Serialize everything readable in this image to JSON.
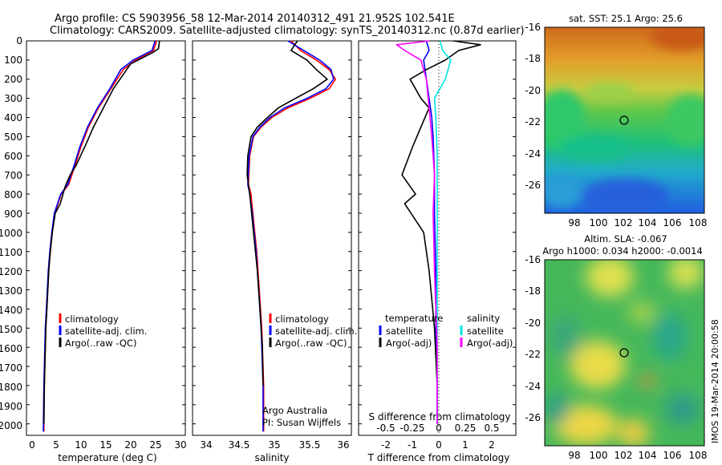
{
  "header": {
    "line1": "Argo profile: CS 5903956_58 12-Mar-2014 20140312_491 21.952S 102.541E",
    "line2": "Climatology: CARS2009. Satellite-adjusted climatology: synTS_20140312.nc (0.87d earlier)"
  },
  "colors": {
    "climatology": "#ff0000",
    "satellite": "#0000ff",
    "argo": "#000000",
    "sal_satellite": "#00e5e5",
    "sal_argo": "#ff00ff"
  },
  "depth_ticks": [
    "0",
    "100",
    "200",
    "300",
    "400",
    "500",
    "600",
    "700",
    "800",
    "900",
    "1000",
    "1100",
    "1200",
    "1300",
    "1400",
    "1500",
    "1600",
    "1700",
    "1800",
    "1900",
    "2000"
  ],
  "temp_legend": {
    "clim": "climatology",
    "sat": "satellite-adj. clim.",
    "argo": "Argo(..raw -QC)"
  },
  "sal_legend": {
    "clim": "climatology",
    "sat": "satellite-adj. clim.",
    "argo": "Argo(..raw -QC)"
  },
  "diff_legend": {
    "temp_title": "temperature",
    "temp_sat": "satellite",
    "temp_argo": "Argo(-adj)",
    "sal_title": "salinity",
    "sal_sat": "satellite",
    "sal_argo": "Argo(-adj)"
  },
  "credit": {
    "line1": "Argo Australia",
    "line2": "PI: Susan Wijffels"
  },
  "diff_axis_top_label": "S difference from climatology",
  "map_sst": {
    "title": "sat. SST: 25.1  Argo: 25.6"
  },
  "map_sla": {
    "title1": "Altim. SLA: -0.067",
    "title2": "Argo h1000: 0.034  h2000: -0.0014"
  },
  "stamp": "IMOS 19-Mar-2014 20:00:58",
  "chart_data": [
    {
      "type": "line",
      "id": "temperature",
      "xlabel": "temperature (deg C)",
      "ylabel": "depth",
      "xlim": [
        -1,
        31
      ],
      "ylim": [
        2060,
        0
      ],
      "xticks": [
        "0",
        "5",
        "10",
        "15",
        "20",
        "25",
        "30"
      ],
      "x_tick_values": [
        0,
        5,
        10,
        15,
        20,
        25,
        30
      ],
      "series": [
        {
          "name": "climatology",
          "color": "red",
          "x": [
            25.2,
            24.6,
            21.0,
            18.5,
            16.0,
            13.5,
            11.5,
            10.0,
            8.8,
            7.5,
            6.0,
            4.7,
            4.2,
            3.8,
            3.5,
            3.3,
            3.1,
            2.9,
            2.8,
            2.7,
            2.6,
            2.5
          ],
          "y": [
            0,
            50,
            100,
            150,
            250,
            350,
            450,
            550,
            650,
            750,
            800,
            900,
            1000,
            1100,
            1200,
            1300,
            1400,
            1500,
            1600,
            1700,
            1800,
            2040
          ]
        },
        {
          "name": "satellite-adj. clim.",
          "color": "blue",
          "x": [
            24.9,
            24.3,
            20.5,
            18.0,
            15.8,
            13.3,
            11.3,
            9.8,
            8.6,
            7.3,
            5.9,
            4.6,
            4.1,
            3.7,
            3.4,
            3.2,
            3.0,
            2.8,
            2.7,
            2.6,
            2.5,
            2.4
          ],
          "y": [
            0,
            50,
            100,
            150,
            250,
            350,
            450,
            550,
            650,
            750,
            800,
            900,
            1000,
            1100,
            1200,
            1300,
            1400,
            1500,
            1600,
            1700,
            1800,
            2040
          ]
        },
        {
          "name": "Argo(..raw -QC)",
          "color": "black",
          "x": [
            25.8,
            25.6,
            24.5,
            20.0,
            16.5,
            14.5,
            12.5,
            10.8,
            9.0,
            7.8,
            6.8,
            5.8,
            4.8,
            4.2,
            3.8,
            3.5,
            3.3,
            3.1,
            2.9,
            2.8,
            2.7,
            2.6,
            2.5
          ],
          "y": [
            0,
            40,
            60,
            120,
            250,
            350,
            450,
            550,
            650,
            700,
            760,
            850,
            900,
            1000,
            1100,
            1200,
            1300,
            1400,
            1500,
            1600,
            1700,
            1800,
            2000
          ]
        }
      ]
    },
    {
      "type": "line",
      "id": "salinity",
      "xlabel": "salinity",
      "ylabel": "depth",
      "xlim": [
        33.6,
        36.1
      ],
      "ylim": [
        2060,
        0
      ],
      "xticks": [
        "34",
        "34.5",
        "35",
        "35.5",
        "36"
      ],
      "x_tick_values": [
        34,
        34.5,
        35,
        35.5,
        36
      ],
      "series": [
        {
          "name": "climatology",
          "color": "red",
          "x": [
            35.15,
            35.3,
            35.55,
            35.75,
            35.85,
            35.75,
            35.45,
            35.1,
            34.85,
            34.68,
            34.56,
            34.5,
            34.48,
            34.52,
            34.55,
            34.58,
            34.61,
            34.63,
            34.65,
            34.67,
            34.69,
            34.7,
            34.72,
            34.72
          ],
          "y": [
            0,
            50,
            100,
            150,
            200,
            250,
            300,
            350,
            400,
            450,
            500,
            600,
            750,
            800,
            900,
            1000,
            1100,
            1200,
            1300,
            1400,
            1500,
            1600,
            1800,
            2040
          ]
        },
        {
          "name": "satellite-adj. clim.",
          "color": "blue",
          "x": [
            35.1,
            35.35,
            35.6,
            35.78,
            35.82,
            35.7,
            35.4,
            35.05,
            34.82,
            34.66,
            34.55,
            34.49,
            34.47,
            34.5,
            34.54,
            34.57,
            34.6,
            34.62,
            34.64,
            34.66,
            34.68,
            34.69,
            34.71,
            34.71
          ],
          "y": [
            0,
            50,
            100,
            150,
            200,
            250,
            300,
            350,
            400,
            450,
            500,
            600,
            750,
            800,
            900,
            1000,
            1100,
            1200,
            1300,
            1400,
            1500,
            1600,
            1800,
            2040
          ]
        },
        {
          "name": "Argo(..raw -QC)",
          "color": "black",
          "x": [
            35.25,
            35.15,
            35.4,
            35.55,
            35.72,
            35.5,
            35.22,
            34.95,
            34.78,
            34.62,
            34.52,
            34.47,
            34.46,
            34.5,
            34.53,
            34.56,
            34.59,
            34.62,
            34.64,
            34.66,
            34.68,
            34.7,
            34.71
          ],
          "y": [
            0,
            50,
            100,
            150,
            200,
            250,
            300,
            350,
            400,
            450,
            500,
            600,
            700,
            800,
            900,
            1000,
            1100,
            1200,
            1300,
            1400,
            1500,
            1600,
            1800
          ]
        }
      ]
    },
    {
      "type": "line",
      "id": "differences",
      "xlabel": "T difference from climatology",
      "ylabel": "depth",
      "xlim": [
        -2.9,
        2.9
      ],
      "ylim": [
        2060,
        0
      ],
      "xticks": [
        "-2",
        "-1",
        "0",
        "1",
        "2"
      ],
      "x_tick_values": [
        -2,
        -1,
        0,
        1,
        2
      ],
      "top_xticks": [
        "-0.5",
        "-0.25",
        "0",
        "0.25",
        "0.5"
      ],
      "top_tick_values": [
        -0.5,
        -0.25,
        0,
        0.25,
        0.5
      ],
      "series": [
        {
          "name": "temperature satellite",
          "color": "blue",
          "x": [
            -0.4,
            -0.3,
            -0.5,
            -0.4,
            -0.3,
            -0.2,
            -0.15,
            -0.1,
            -0.1,
            -0.05,
            -0.05,
            0,
            0
          ],
          "y": [
            0,
            50,
            100,
            200,
            300,
            400,
            500,
            700,
            900,
            1200,
            1500,
            1800,
            2000
          ]
        },
        {
          "name": "temperature Argo(-adj)",
          "color": "black",
          "x": [
            0.6,
            1.6,
            0.8,
            0.3,
            -0.4,
            -1.0,
            -0.6,
            -0.3,
            -0.6,
            -0.9,
            -1.3,
            -0.8,
            -1.2,
            -0.5,
            -0.3,
            -0.1,
            0,
            0
          ],
          "y": [
            0,
            20,
            50,
            100,
            150,
            200,
            300,
            350,
            450,
            550,
            700,
            800,
            850,
            1000,
            1200,
            1500,
            1800,
            2000
          ]
        },
        {
          "name": "salinity satellite",
          "color": "cyan",
          "x": [
            0.1,
            0.2,
            0.5,
            0.3,
            -0.1,
            -0.05,
            0,
            0,
            0,
            0,
            0
          ],
          "y": [
            0,
            50,
            100,
            200,
            300,
            400,
            600,
            900,
            1200,
            1500,
            2000
          ]
        },
        {
          "name": "salinity Argo(-adj)",
          "color": "magenta",
          "x": [
            -0.3,
            -1.5,
            -1.2,
            -0.6,
            -0.4,
            -0.3,
            -0.2,
            -0.1,
            -0.15,
            -0.1,
            0,
            0
          ],
          "y": [
            0,
            20,
            50,
            100,
            200,
            350,
            500,
            700,
            900,
            1200,
            1600,
            2000
          ]
        }
      ]
    },
    {
      "type": "heatmap",
      "id": "sst-map",
      "title": "sat. SST: 25.1  Argo: 25.6",
      "xlim": [
        97,
        108
      ],
      "ylim": [
        -27.7,
        -16
      ],
      "xticks": [
        "98",
        "100",
        "102",
        "104",
        "106",
        "108"
      ],
      "x_tick_values": [
        98,
        100,
        102,
        104,
        106,
        108
      ],
      "yticks": [
        "-16",
        "-18",
        "-20",
        "-22",
        "-24",
        "-26"
      ],
      "y_tick_values": [
        -16,
        -18,
        -20,
        -22,
        -24,
        -26
      ],
      "profile_location": [
        102.541,
        -21.952
      ]
    },
    {
      "type": "heatmap",
      "id": "sla-map",
      "title": "Altim. SLA: -0.067",
      "xlim": [
        97,
        108
      ],
      "ylim": [
        -27.7,
        -16
      ],
      "xticks": [
        "98",
        "100",
        "102",
        "104",
        "106",
        "108"
      ],
      "x_tick_values": [
        98,
        100,
        102,
        104,
        106,
        108
      ],
      "yticks": [
        "-16",
        "-18",
        "-20",
        "-22",
        "-24",
        "-26"
      ],
      "y_tick_values": [
        -16,
        -18,
        -20,
        -22,
        -24,
        -26
      ],
      "profile_location": [
        102.541,
        -21.952
      ]
    }
  ]
}
